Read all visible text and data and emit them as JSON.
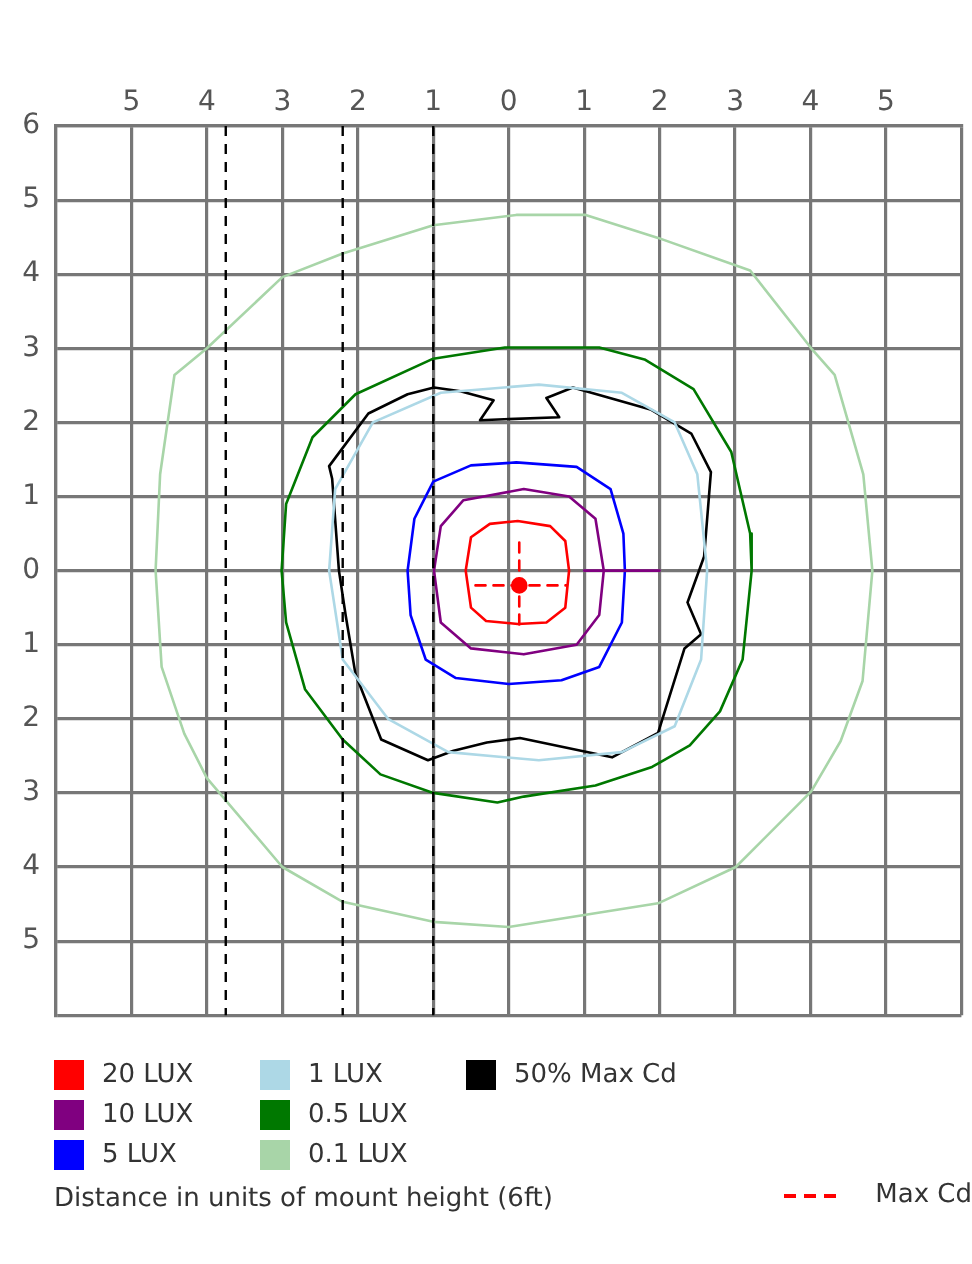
{
  "chart_data": {
    "type": "line",
    "annotations": [
      "Distance in units of mount height (6ft)"
    ],
    "xlim": [
      -6,
      6
    ],
    "ylim": [
      -6,
      6
    ],
    "xticks": [
      {
        "value": -6,
        "label": null
      },
      {
        "value": -5,
        "label": "5"
      },
      {
        "value": -4,
        "label": "4"
      },
      {
        "value": -3,
        "label": "3"
      },
      {
        "value": -2,
        "label": "2"
      },
      {
        "value": -1,
        "label": "1"
      },
      0,
      1,
      2,
      3,
      4,
      5,
      {
        "value": 6,
        "label": null
      }
    ],
    "yticks": [
      {
        "value": -6,
        "label": null
      },
      {
        "value": -5,
        "label": "5"
      },
      {
        "value": -4,
        "label": "4"
      },
      {
        "value": -3,
        "label": "3"
      },
      {
        "value": -2,
        "label": "2"
      },
      {
        "value": -1,
        "label": "1"
      },
      0,
      1,
      2,
      3,
      4,
      5,
      6
    ],
    "grid": true,
    "legend": "bottom",
    "marker": "none",
    "line_style": "solid",
    "ref_lines": [
      {
        "axis": "x",
        "value": -3.75,
        "color": "#000000",
        "line_style": "dashed"
      },
      {
        "axis": "x",
        "value": -2.2,
        "color": "#000000",
        "line_style": "dashed"
      },
      {
        "axis": "x",
        "value": -1,
        "color": "#000000",
        "line_style": "dashed"
      }
    ],
    "series": [
      {
        "name": "20 LUX",
        "color": "#ff0000",
        "x": [
          -0.57,
          -0.5,
          -0.25,
          0.12,
          0.55,
          0.75,
          0.8,
          null,
          -0.57,
          -0.5,
          -0.3,
          0.12,
          0.5,
          0.75,
          0.8
        ],
        "values": [
          0,
          0.45,
          0.63,
          0.67,
          0.6,
          0.4,
          0,
          null,
          0,
          -0.5,
          -0.68,
          -0.72,
          -0.7,
          -0.5,
          0
        ]
      },
      {
        "name": "10 LUX",
        "color": "#800080",
        "x": [
          -0.99,
          -0.9,
          -0.6,
          0.2,
          0.8,
          1.15,
          1.26,
          null,
          -0.99,
          -0.9,
          -0.5,
          0.2,
          0.9,
          1.2,
          1.26,
          null,
          1,
          2
        ],
        "values": [
          0,
          0.6,
          0.95,
          1.1,
          1.0,
          0.7,
          0,
          null,
          0,
          -0.7,
          -1.05,
          -1.13,
          -1.0,
          -0.6,
          0,
          null,
          0,
          0
        ]
      },
      {
        "name": "5 LUX",
        "color": "#0000ff",
        "x": [
          -1.34,
          -1.25,
          -1.0,
          -0.5,
          0.1,
          0.9,
          1.35,
          1.52,
          1.54,
          null,
          -1.34,
          -1.3,
          -1.1,
          -0.7,
          0,
          0.7,
          1.2,
          1.5,
          1.54
        ],
        "values": [
          0,
          0.7,
          1.2,
          1.42,
          1.46,
          1.4,
          1.1,
          0.5,
          0,
          null,
          0,
          -0.6,
          -1.2,
          -1.45,
          -1.53,
          -1.48,
          -1.3,
          -0.7,
          0
        ]
      },
      {
        "name": "1 LUX",
        "color": "#add8e6",
        "x": [
          -2.38,
          -2.3,
          -1.8,
          -0.9,
          0.4,
          1.5,
          2.2,
          2.5,
          2.63,
          null,
          -2.38,
          -2.2,
          -1.6,
          -0.8,
          0.4,
          1.5,
          2.2,
          2.55,
          2.63
        ],
        "values": [
          0,
          1.1,
          2.0,
          2.4,
          2.51,
          2.4,
          2.0,
          1.3,
          0,
          null,
          0,
          -1.2,
          -2.0,
          -2.45,
          -2.56,
          -2.45,
          -2.1,
          -1.2,
          0
        ]
      },
      {
        "name": "0.5 LUX",
        "color": "#007800",
        "x": [
          -3.01,
          -2.95,
          -2.6,
          -2.03,
          -1.0,
          -0.05,
          1.2,
          1.8,
          2.45,
          2.95,
          3.2,
          3.22,
          null,
          -3.01,
          -2.95,
          -2.7,
          -2.2,
          -1.7,
          -1.0,
          -0.15,
          0.2,
          1.15,
          1.9,
          2.4,
          2.8,
          3.1,
          3.22
        ],
        "values": [
          0,
          0.9,
          1.8,
          2.38,
          2.86,
          3.01,
          3.01,
          2.85,
          2.45,
          1.6,
          0.5,
          0,
          null,
          0,
          -0.7,
          -1.6,
          -2.28,
          -2.75,
          -3.0,
          -3.13,
          -3.05,
          -2.9,
          -2.65,
          -2.36,
          -1.9,
          -1.2,
          0
        ]
      },
      {
        "name": "0.1 LUX",
        "color": "#a8d5a8",
        "x": [
          -4.68,
          -4.62,
          -4.43,
          -4.0,
          -3.0,
          -2.2,
          -1.0,
          0.1,
          1.02,
          1.98,
          3.2,
          4.01,
          4.32,
          4.7,
          4.82,
          null,
          -4.68,
          -4.6,
          -4.3,
          -4.0,
          -3.0,
          -2.2,
          -1.0,
          0,
          1.98,
          3.01,
          4.01,
          4.4,
          4.69,
          4.82
        ],
        "values": [
          0,
          1.3,
          2.64,
          3.0,
          3.96,
          4.28,
          4.66,
          4.8,
          4.8,
          4.49,
          4.05,
          3.0,
          2.64,
          1.3,
          0,
          null,
          0,
          -1.3,
          -2.2,
          -2.8,
          -4.0,
          -4.47,
          -4.74,
          -4.81,
          -4.49,
          -4.0,
          -2.98,
          -2.3,
          -1.49,
          0
        ]
      },
      {
        "name": "50% Max Cd",
        "color": "#000000",
        "x": [
          -2.38,
          -2.34,
          -2.25,
          -2.16,
          -2.03,
          -1.69,
          -1.07,
          -0.73,
          -0.29,
          0.15,
          1.37,
          1.98,
          2.33,
          2.55,
          null,
          2.37,
          2.55,
          null,
          2.37,
          2.59,
          2.68,
          null,
          -2.38,
          -1.86,
          -1.34,
          -0.99,
          -0.64,
          -0.2,
          -0.38,
          0.67,
          0.5,
          0.85,
          1.89,
          2.42,
          2.68
        ],
        "values": [
          1.41,
          1.24,
          0,
          -0.61,
          -1.4,
          -2.28,
          -2.56,
          -2.43,
          -2.32,
          -2.26,
          -2.52,
          -2.19,
          -1.05,
          -0.86,
          null,
          -0.43,
          -0.86,
          null,
          -0.43,
          0.19,
          1.33,
          null,
          1.41,
          2.12,
          2.38,
          2.47,
          2.42,
          2.3,
          2.03,
          2.07,
          2.33,
          2.47,
          2.17,
          1.85,
          1.33
        ]
      },
      {
        "name": "Max Cd",
        "color": "#ff0000",
        "line_style": "dashed",
        "x": [
          -0.44,
          0.77,
          null,
          0.14,
          0.14
        ],
        "values": [
          -0.2,
          -0.2,
          null,
          0.38,
          -0.73
        ]
      },
      {
        "type": "scatter",
        "color": "#ff0000",
        "marker": "circle",
        "x": [
          0.14
        ],
        "values": [
          -0.2
        ]
      }
    ]
  }
}
